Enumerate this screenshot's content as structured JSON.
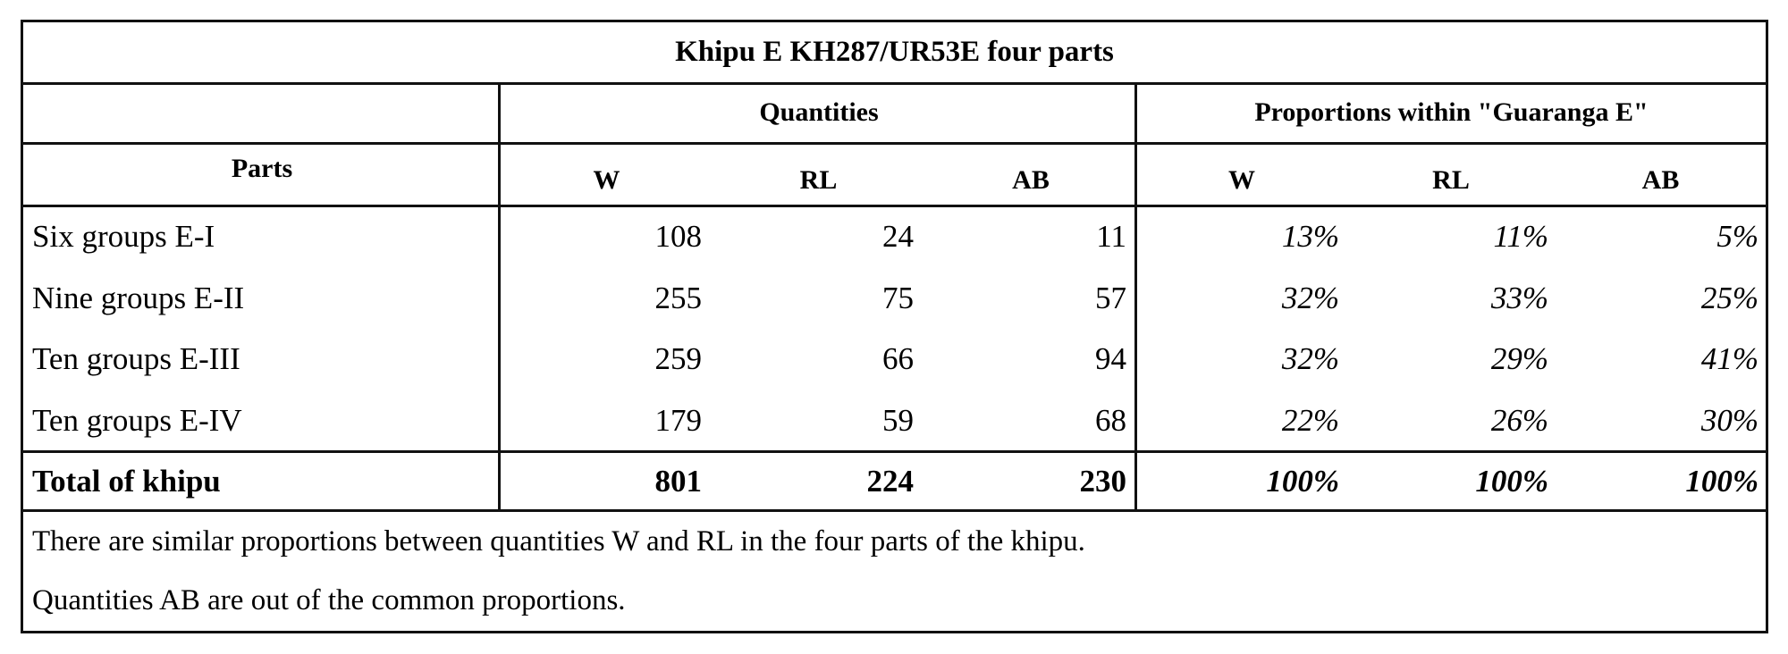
{
  "title": "Khipu E KH287/UR53E  four parts",
  "headers": {
    "group_quantities": "Quantities",
    "group_proportions": "Proportions within \"Guaranga E\"",
    "parts": "Parts",
    "columns": [
      "W",
      "RL",
      "AB",
      "W",
      "RL",
      "AB"
    ]
  },
  "rows": [
    {
      "part": "Six groups E-I",
      "values": [
        "108",
        "24",
        "11",
        "13%",
        "11%",
        "5%"
      ]
    },
    {
      "part": "Nine groups E-II",
      "values": [
        "255",
        "75",
        "57",
        "32%",
        "33%",
        "25%"
      ]
    },
    {
      "part": "Ten groups E-III",
      "values": [
        "259",
        "66",
        "94",
        "32%",
        "29%",
        "41%"
      ]
    },
    {
      "part": "Ten groups E-IV",
      "values": [
        "179",
        "59",
        "68",
        "22%",
        "26%",
        "30%"
      ]
    }
  ],
  "total": {
    "part": "Total of khipu",
    "values": [
      "801",
      "224",
      "230",
      "100%",
      "100%",
      "100%"
    ]
  },
  "notes": [
    "There are similar proportions between quantities W and RL in the four parts of the khipu.",
    "Quantities AB are out of the common proportions."
  ]
}
